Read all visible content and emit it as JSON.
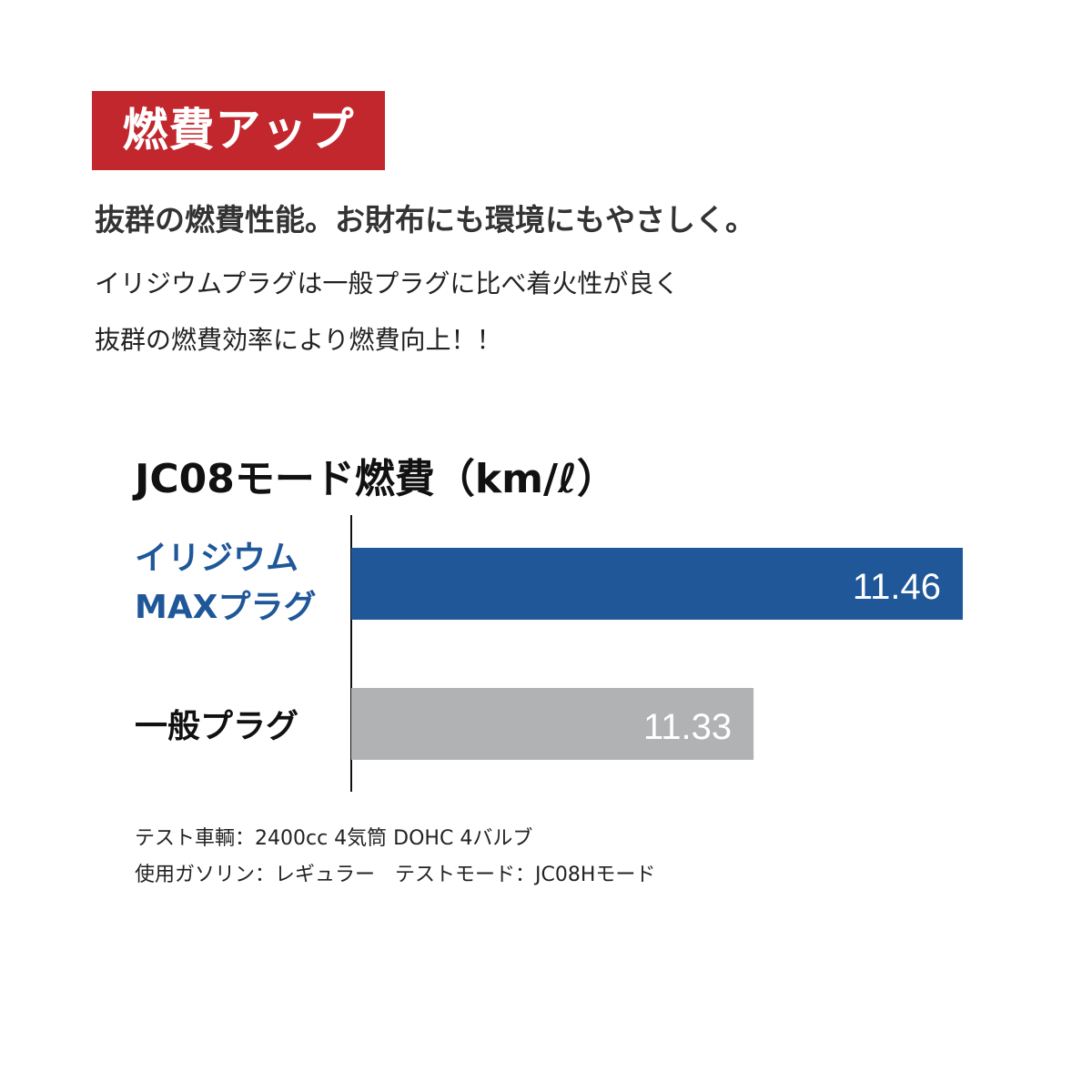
{
  "badge": {
    "text": "燃費アップ",
    "color": "#c1272d"
  },
  "headline": "抜群の燃費性能。お財布にも環境にもやさしく。",
  "description": [
    "イリジウムプラグは一般プラグに比べ着火性が良く",
    "抜群の燃費効率により燃費向上！！"
  ],
  "chart_data": {
    "type": "bar",
    "orientation": "horizontal",
    "title": "JC08モード燃費（km/ℓ）",
    "categories": [
      "イリジウム\nMAXプラグ",
      "一般プラグ"
    ],
    "values": [
      11.46,
      11.33
    ],
    "data_labels": [
      "11.46",
      "11.33"
    ],
    "colors": [
      "#1f5799",
      "#b1b2b4"
    ],
    "label_colors": [
      "#1f5799",
      "#111111"
    ],
    "xlim": [
      11.08,
      11.46
    ],
    "grid": false
  },
  "notes": [
    "テスト車輌：2400cc 4気筒 DOHC 4バルブ",
    "使用ガソリン：レギュラー　テストモード：JC08Hモード"
  ]
}
